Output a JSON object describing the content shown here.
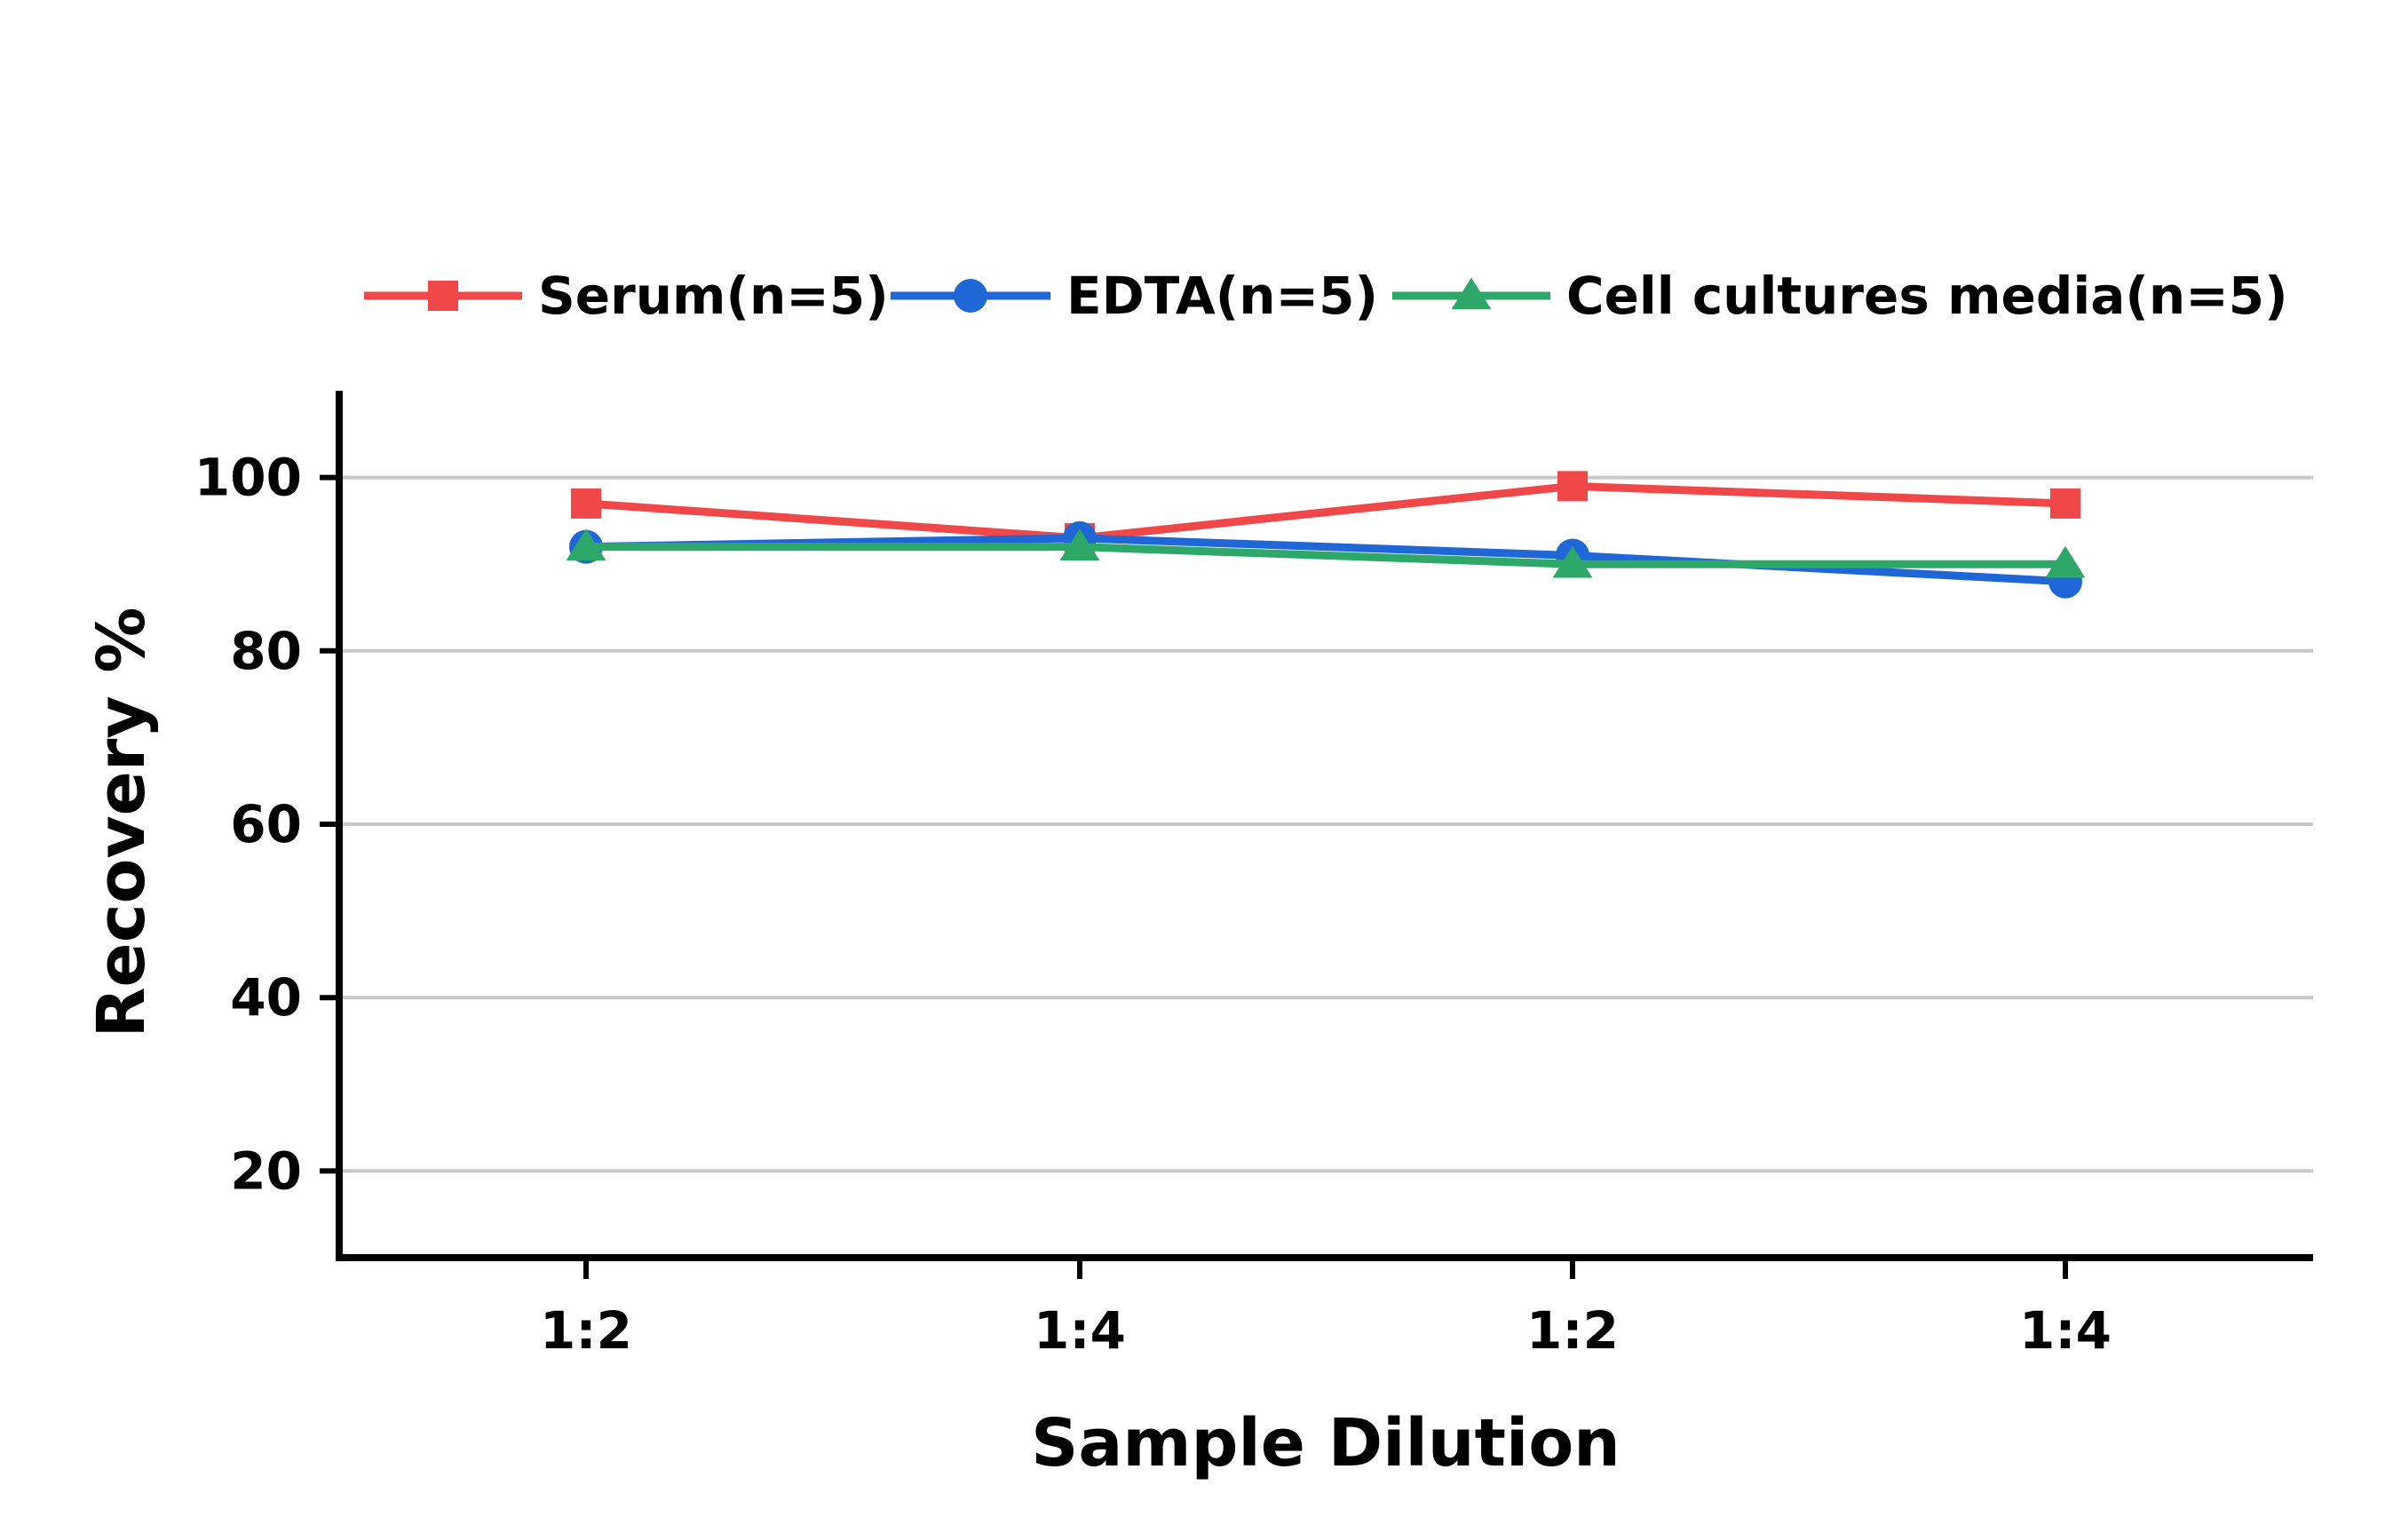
{
  "chart_data": {
    "type": "line",
    "xlabel": "Sample Dilution",
    "ylabel": "Recovery %",
    "categories": [
      "1:2",
      "1:4",
      "1:2",
      "1:4"
    ],
    "ylim": [
      10,
      110
    ],
    "yticks": [
      20,
      40,
      60,
      80,
      100
    ],
    "grid": "horizontal",
    "legend_position": "top",
    "series": [
      {
        "name": "Serum(n=5)",
        "color": "#f04848",
        "marker": "square",
        "values": [
          97,
          93,
          99,
          97
        ]
      },
      {
        "name": "EDTA(n=5)",
        "color": "#1f66d6",
        "marker": "circle",
        "values": [
          92,
          93,
          91,
          88
        ]
      },
      {
        "name": "Cell cultures media(n=5)",
        "color": "#2ea868",
        "marker": "triangle",
        "values": [
          92,
          92,
          90,
          90
        ]
      }
    ]
  }
}
